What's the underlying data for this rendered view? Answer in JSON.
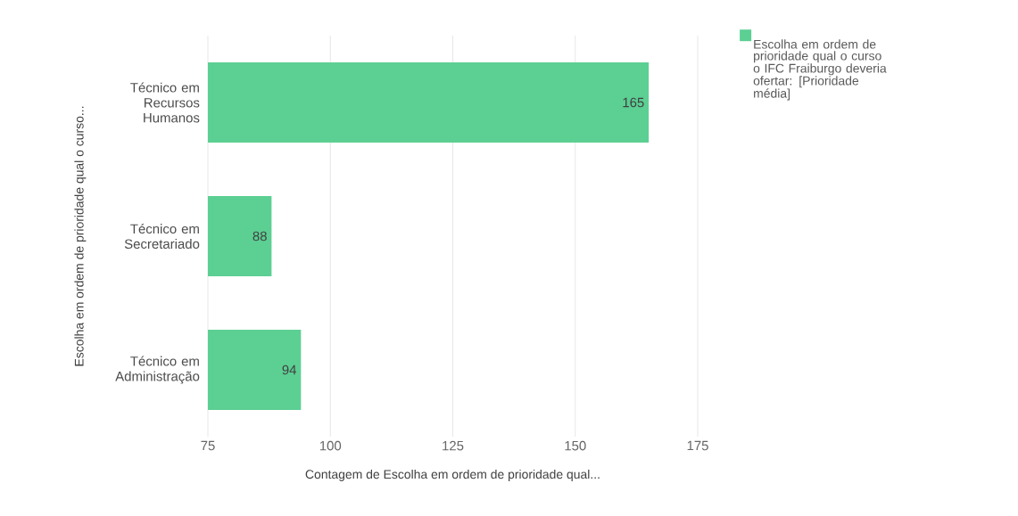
{
  "chart_data": {
    "type": "bar",
    "orientation": "horizontal",
    "categories": [
      "Técnico em Recursos Humanos",
      "Técnico em Secretariado",
      "Técnico em Administração"
    ],
    "series": [
      {
        "name": "Escolha em ordem de prioridade qual o curso o IFC Fraiburgo deveria ofertar: [Prioridade média]",
        "color": "#5ccf93",
        "values": [
          165,
          88,
          94
        ]
      }
    ],
    "xlim": [
      75,
      175
    ],
    "xticks": [
      75,
      100,
      125,
      150,
      175
    ],
    "xlabel": "Contagem de Escolha em ordem de prioridade qual...",
    "ylabel": "Escolha em ordem de prioridade qual o curso...",
    "data_labels": true,
    "grid": "x",
    "legend": "top right"
  }
}
